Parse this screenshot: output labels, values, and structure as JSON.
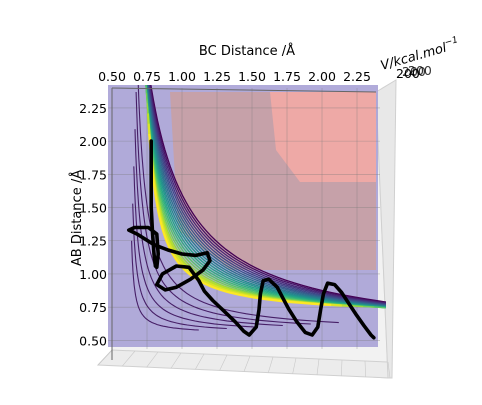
{
  "chart_data": {
    "type": "contour",
    "title": "",
    "xlabel": "BC Distance /Å",
    "ylabel": "AB Distance /Å",
    "zlabel": "V/kcal.mol",
    "zlabel_exponent": "−1",
    "z_tick_fragment": "200",
    "x_ticks": [
      "0.50",
      "0.75",
      "1.00",
      "1.25",
      "1.50",
      "1.75",
      "2.00",
      "2.25"
    ],
    "y_ticks": [
      "0.50",
      "0.75",
      "1.00",
      "1.25",
      "1.50",
      "1.75",
      "2.00",
      "2.25"
    ],
    "x_tick_values": [
      0.5,
      0.75,
      1.0,
      1.25,
      1.5,
      1.75,
      2.0,
      2.25
    ],
    "y_tick_values": [
      0.5,
      0.75,
      1.0,
      1.25,
      1.5,
      1.75,
      2.0,
      2.25
    ],
    "xlim": [
      0.5,
      2.4
    ],
    "ylim": [
      0.45,
      2.4
    ],
    "colormap": "viridis",
    "grid": true,
    "surface_colors": {
      "valley": "#a9a2d6",
      "plateau": "#caa0a0",
      "peak": "#f2aaa5"
    },
    "trajectory": {
      "color": "#000000",
      "points": [
        [
          0.78,
          2.0
        ],
        [
          0.78,
          1.75
        ],
        [
          0.78,
          1.5
        ],
        [
          0.79,
          1.3
        ],
        [
          0.8,
          1.15
        ],
        [
          0.81,
          1.06
        ],
        [
          0.82,
          1.05
        ],
        [
          0.83,
          1.15
        ],
        [
          0.82,
          1.3
        ],
        [
          0.76,
          1.35
        ],
        [
          0.66,
          1.35
        ],
        [
          0.62,
          1.33
        ],
        [
          0.68,
          1.3
        ],
        [
          0.8,
          1.22
        ],
        [
          0.9,
          1.18
        ],
        [
          1.0,
          1.15
        ],
        [
          1.1,
          1.14
        ],
        [
          1.18,
          1.16
        ],
        [
          1.2,
          1.1
        ],
        [
          1.15,
          1.03
        ],
        [
          1.06,
          0.96
        ],
        [
          0.96,
          0.9
        ],
        [
          0.88,
          0.88
        ],
        [
          0.82,
          0.92
        ],
        [
          0.86,
          1.0
        ],
        [
          0.96,
          1.06
        ],
        [
          1.05,
          1.05
        ],
        [
          1.12,
          0.95
        ],
        [
          1.16,
          0.87
        ],
        [
          1.22,
          0.8
        ],
        [
          1.3,
          0.72
        ],
        [
          1.38,
          0.64
        ],
        [
          1.44,
          0.57
        ],
        [
          1.48,
          0.54
        ],
        [
          1.53,
          0.6
        ],
        [
          1.55,
          0.73
        ],
        [
          1.56,
          0.85
        ],
        [
          1.58,
          0.95
        ],
        [
          1.62,
          0.96
        ],
        [
          1.68,
          0.9
        ],
        [
          1.72,
          0.82
        ],
        [
          1.76,
          0.74
        ],
        [
          1.82,
          0.64
        ],
        [
          1.88,
          0.56
        ],
        [
          1.93,
          0.54
        ],
        [
          1.97,
          0.6
        ],
        [
          1.99,
          0.73
        ],
        [
          2.01,
          0.85
        ],
        [
          2.04,
          0.93
        ],
        [
          2.09,
          0.92
        ],
        [
          2.14,
          0.86
        ],
        [
          2.19,
          0.78
        ],
        [
          2.24,
          0.7
        ],
        [
          2.3,
          0.61
        ],
        [
          2.35,
          0.54
        ],
        [
          2.37,
          0.52
        ]
      ]
    }
  }
}
